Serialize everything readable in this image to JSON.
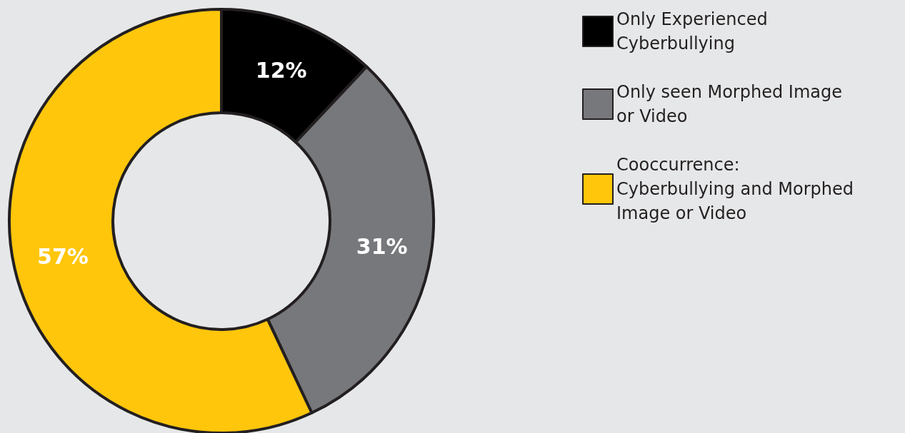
{
  "chart_data": {
    "type": "donut",
    "categories": [
      "Only Experienced Cyberbullying",
      "Only seen Morphed Image or Video",
      "Cooccurrence: Cyberbullying and Morphed Image or Video"
    ],
    "values": [
      12,
      31,
      57
    ],
    "colors": [
      "#000000",
      "#77787b",
      "#ffc60b"
    ],
    "value_labels": [
      "12%",
      "31%",
      "57%"
    ],
    "legend": "right"
  }
}
